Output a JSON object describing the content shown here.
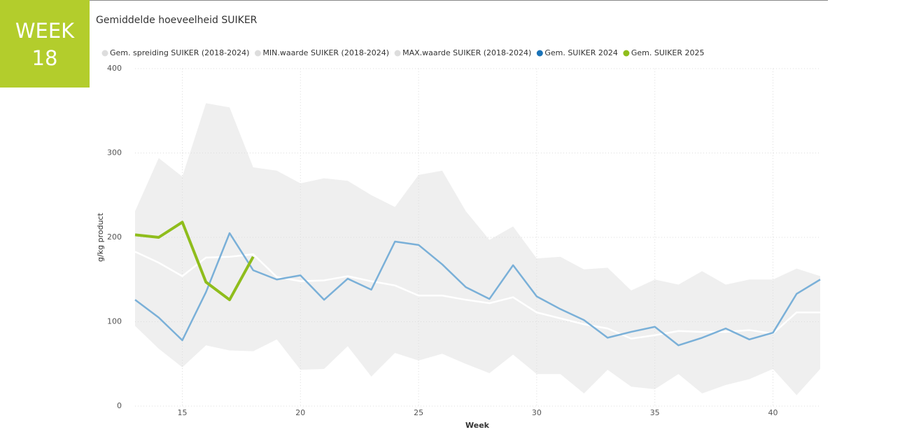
{
  "badge": {
    "line1": "WEEK",
    "line2": "18",
    "color": "#b3cd2c"
  },
  "chart_data": {
    "type": "line",
    "title": "Gemiddelde hoeveelheid SUIKER",
    "x_label": "Week",
    "y_label": "g/kg product",
    "x": [
      13,
      14,
      15,
      16,
      17,
      18,
      19,
      20,
      21,
      22,
      23,
      24,
      25,
      26,
      27,
      28,
      29,
      30,
      31,
      32,
      33,
      34,
      35,
      36,
      37,
      38,
      39,
      40,
      41,
      42
    ],
    "xlim": [
      13,
      42
    ],
    "xticks": [
      15,
      20,
      25,
      30,
      35,
      40
    ],
    "ylim": [
      0,
      400
    ],
    "yticks": [
      0,
      100,
      200,
      300,
      400
    ],
    "grid": true,
    "series": [
      {
        "name": "Gem. spreiding SUIKER (2018-2024)",
        "color": "#ffffff",
        "legend_color": "#dddddd",
        "width": 2.5,
        "values": [
          183,
          170,
          154,
          176,
          177,
          180,
          153,
          148,
          149,
          154,
          148,
          143,
          131,
          131,
          126,
          122,
          129,
          111,
          104,
          97,
          92,
          80,
          84,
          89,
          88,
          88,
          90,
          86,
          111,
          111
        ]
      },
      {
        "name": "MIN.waarde SUIKER (2018-2024)",
        "color": "#dddddd",
        "area": "lower",
        "values": [
          95,
          68,
          46,
          72,
          66,
          65,
          79,
          43,
          44,
          71,
          35,
          63,
          54,
          62,
          50,
          39,
          61,
          38,
          38,
          15,
          43,
          23,
          20,
          38,
          15,
          25,
          32,
          44,
          13,
          44
        ]
      },
      {
        "name": "MAX.waarde SUIKER (2018-2024)",
        "color": "#dddddd",
        "area": "upper",
        "values": [
          231,
          294,
          272,
          359,
          354,
          283,
          279,
          264,
          270,
          267,
          250,
          236,
          274,
          279,
          231,
          197,
          213,
          175,
          177,
          162,
          164,
          137,
          150,
          144,
          160,
          144,
          150,
          150,
          163,
          154
        ]
      },
      {
        "name": "Gem. SUIKER 2024",
        "color": "#1a73b8",
        "line_color": "#7ab0d8",
        "width": 2.5,
        "values": [
          126,
          105,
          78,
          135,
          205,
          161,
          150,
          155,
          126,
          151,
          138,
          195,
          191,
          168,
          141,
          127,
          167,
          130,
          115,
          102,
          81,
          88,
          94,
          72,
          81,
          92,
          79,
          87,
          133,
          150
        ]
      },
      {
        "name": "Gem. SUIKER 2025",
        "color": "#8fbd1c",
        "line_color": "#8fbd1c",
        "width": 4,
        "values": [
          203,
          200,
          218,
          147,
          126,
          177,
          null,
          null,
          null,
          null,
          null,
          null,
          null,
          null,
          null,
          null,
          null,
          null,
          null,
          null,
          null,
          null,
          null,
          null,
          null,
          null,
          null,
          null,
          null,
          null
        ]
      }
    ]
  }
}
